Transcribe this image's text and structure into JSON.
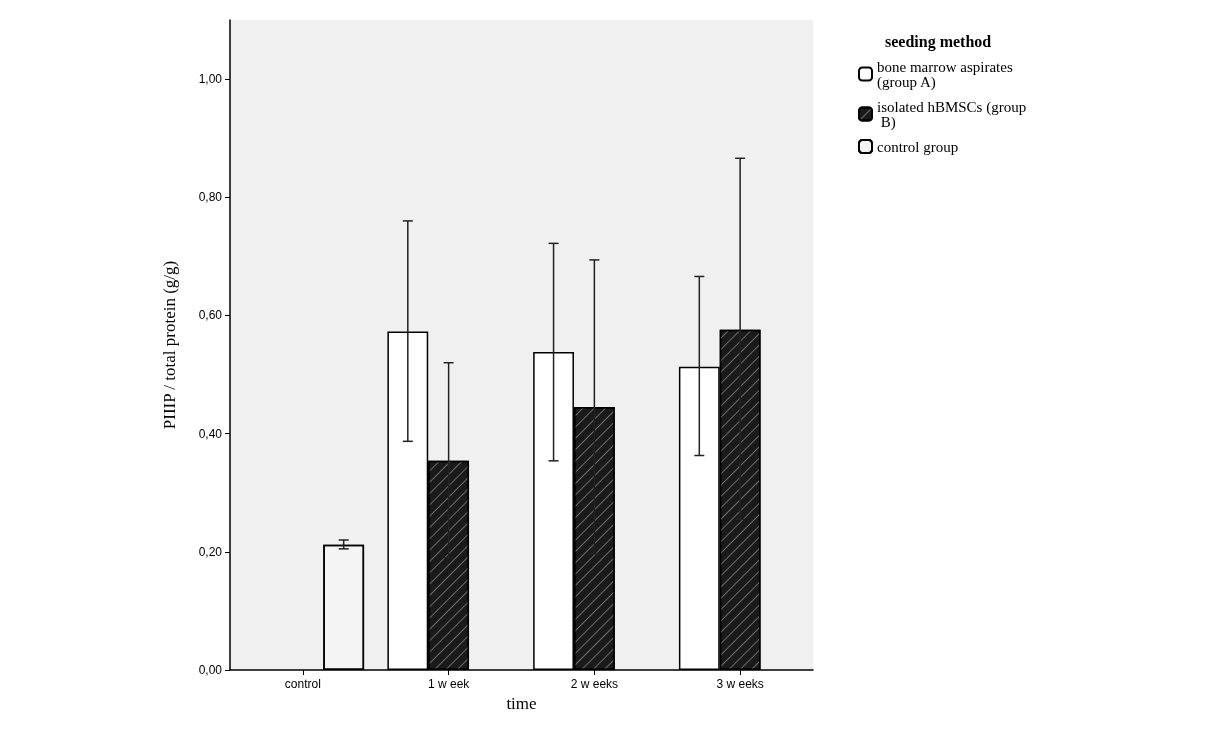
{
  "chart_data": {
    "type": "bar",
    "xlabel": "time",
    "ylabel": "PIIIP / total protein (g/g)",
    "legend_title": "seeding method",
    "legend": "top right",
    "categories": [
      "control",
      "1 w eek",
      "2 w eeks",
      "3 w eeks"
    ],
    "series": [
      {
        "name": "bone marrow aspirates (group A)",
        "color": "#ffffff",
        "values": [
          null,
          0.573,
          0.538,
          0.513
        ],
        "errors": [
          null,
          [
            0.387,
            0.76
          ],
          [
            0.354,
            0.722
          ],
          [
            0.363,
            0.666
          ]
        ]
      },
      {
        "name": "isolated hBMSCs (group B)",
        "color": "#1a1a1a",
        "values": [
          null,
          0.354,
          0.445,
          0.576
        ],
        "errors": [
          null,
          [
            0.19,
            0.52
          ],
          [
            0.197,
            0.694
          ],
          [
            0.255,
            0.866
          ]
        ]
      },
      {
        "name": "control group",
        "color": "#f4f4f4",
        "values": [
          0.212,
          null,
          null,
          null
        ],
        "errors": [
          [
            0.205,
            0.22
          ],
          null,
          null,
          null
        ]
      }
    ],
    "ylim": [
      0,
      1.1
    ],
    "yticks": [
      {
        "value": 0,
        "label": "0,00"
      },
      {
        "value": 0.2,
        "label": "0,20"
      },
      {
        "value": 0.4,
        "label": "0,40"
      },
      {
        "value": 0.6,
        "label": "0,60"
      },
      {
        "value": 0.8,
        "label": "0,80"
      },
      {
        "value": 1,
        "label": "1,00"
      }
    ],
    "grid": false
  }
}
